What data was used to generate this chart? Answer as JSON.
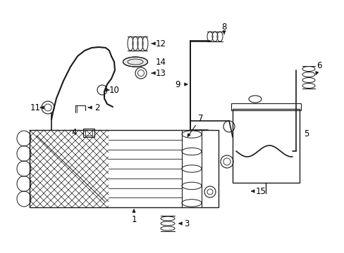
{
  "bg_color": "#ffffff",
  "line_color": "#1a1a1a",
  "label_color": "#000000",
  "lw_main": 1.0,
  "lw_thin": 0.7,
  "font_size": 8.5
}
